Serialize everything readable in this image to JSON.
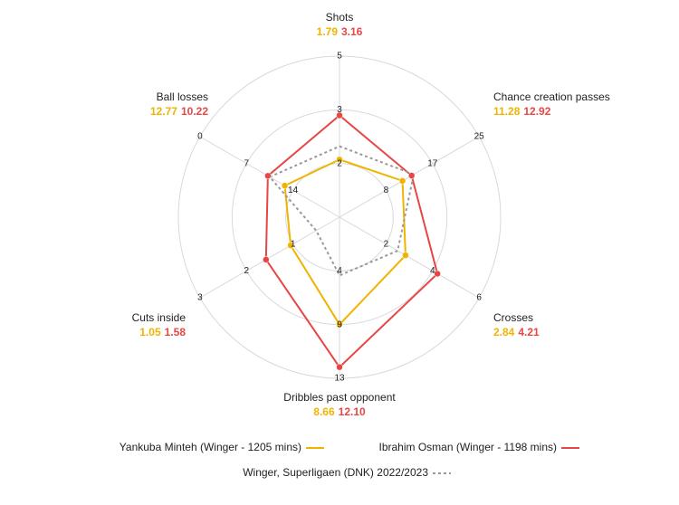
{
  "chart_data": {
    "type": "radar",
    "axes": [
      {
        "name": "Shots",
        "lim": [
          0,
          5
        ],
        "ticks": [
          {
            "value": 1.667,
            "label": "2"
          },
          {
            "value": 3.333,
            "label": "3"
          },
          5
        ]
      },
      {
        "name": "Chance creation passes",
        "lim": [
          0,
          25
        ],
        "ticks": [
          {
            "value": 8.333,
            "label": "8"
          },
          {
            "value": 16.667,
            "label": "17"
          },
          25
        ]
      },
      {
        "name": "Crosses",
        "lim": [
          0,
          6
        ],
        "ticks": [
          2,
          4,
          6
        ]
      },
      {
        "name": "Dribbles past opponent",
        "lim": [
          0,
          13
        ],
        "ticks": [
          {
            "value": 4.333,
            "label": "4"
          },
          {
            "value": 8.667,
            "label": "9"
          },
          13
        ]
      },
      {
        "name": "Cuts inside",
        "lim": [
          0,
          3
        ],
        "ticks": [
          1,
          2,
          3
        ]
      },
      {
        "name": "Ball losses",
        "lim": [
          21,
          0
        ],
        "ticks": [
          14,
          7,
          0
        ]
      }
    ],
    "series": [
      {
        "name": "Yankuba Minteh (Winger - 1205 mins)",
        "color": "#f0b400",
        "values": [
          1.79,
          11.28,
          2.84,
          8.66,
          1.05,
          12.77
        ],
        "value_labels": [
          "1.79",
          "11.28",
          "2.84",
          "8.66",
          "1.05",
          "12.77"
        ]
      },
      {
        "name": "Ibrahim Osman (Winger - 1198 mins)",
        "color": "#e84545",
        "values": [
          3.16,
          12.92,
          4.21,
          12.1,
          1.58,
          10.22
        ],
        "value_labels": [
          "3.16",
          "12.92",
          "4.21",
          "12.10",
          "1.58",
          "10.22"
        ]
      },
      {
        "name": "Winger, Superligaen (DNK) 2022/2023",
        "color": "#999999",
        "dashed": true,
        "values": [
          2.2,
          13.3,
          2.5,
          4.7,
          0.5,
          10.5
        ]
      }
    ]
  }
}
